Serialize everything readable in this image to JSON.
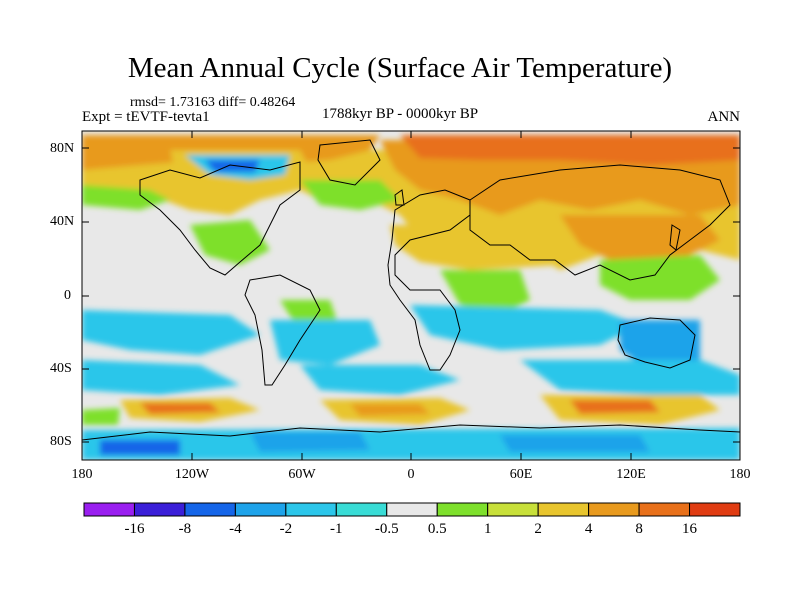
{
  "title": "Mean Annual Cycle (Surface Air Temperature)",
  "stats": "rmsd= 1.73163 diff= 0.48264",
  "experiment": "Expt = tEVTF-tevta1",
  "period": "1788kyr BP - 0000kyr BP",
  "season": "ANN",
  "lat_labels": [
    "80N",
    "40N",
    "0",
    "40S",
    "80S"
  ],
  "lon_labels": [
    "180",
    "120W",
    "60W",
    "0",
    "60E",
    "120E",
    "180"
  ],
  "colorbar": {
    "labels": [
      "-16",
      "-8",
      "-4",
      "-2",
      "-1",
      "-0.5",
      "0.5",
      "1",
      "2",
      "4",
      "8",
      "16"
    ],
    "colors": [
      "#9a1ff0",
      "#3b1fd8",
      "#1565e8",
      "#1ea3ea",
      "#2cc6ea",
      "#39dcd6",
      "#e8e8e8",
      "#7ee02c",
      "#c8e03a",
      "#e8c52e",
      "#e89a1e",
      "#e8701a",
      "#e03c12"
    ]
  },
  "colors": {
    "background_no_change": "#e8e8e8",
    "warm_light": "#7ee02c",
    "warm_mid": "#e8c52e",
    "warm_strong": "#e8701a",
    "cool_light": "#2cc6ea",
    "cool_mid": "#1ea3ea"
  }
}
